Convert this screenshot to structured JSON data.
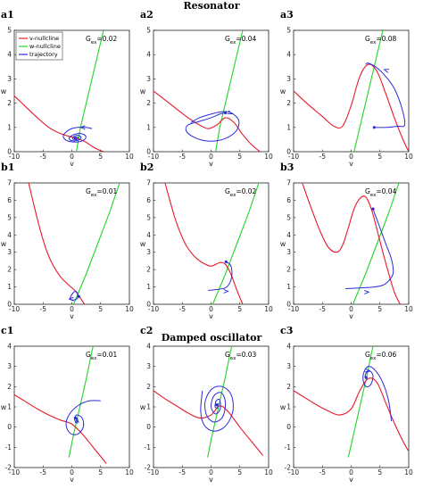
{
  "row_titles": [
    "Resonator",
    "",
    "Damped oscillator"
  ],
  "legend": {
    "entries": [
      {
        "label": "v-nullcline",
        "color": "#e8192c"
      },
      {
        "label": "w-nullcline",
        "color": "#22d42a"
      },
      {
        "label": "trajectory",
        "color": "#2a2ad8"
      }
    ]
  },
  "colors": {
    "v_nullcline": "#e8192c",
    "w_nullcline": "#22d42a",
    "trajectory": "#2a2ad8"
  },
  "chart_data": [
    {
      "panel": "a1",
      "type": "line",
      "gex_label": "G",
      "gex_sub": "ex",
      "gex_value": "=0.02",
      "xlabel": "v",
      "ylabel": "w",
      "xlim": [
        -10,
        10
      ],
      "ylim": [
        0,
        5
      ],
      "xticks": [
        -10,
        -5,
        0,
        5,
        10
      ],
      "yticks": [
        0,
        1,
        2,
        3,
        4,
        5
      ],
      "v_nullcline": {
        "x": [
          -10,
          -8,
          -6,
          -4,
          -2,
          0,
          2,
          4,
          5.5
        ],
        "y": [
          2.3,
          1.85,
          1.4,
          1.0,
          0.75,
          0.6,
          0.45,
          0.15,
          0
        ]
      },
      "w_nullcline": {
        "x": [
          0.8,
          1.5,
          2.5,
          3.5,
          4.5,
          5.5
        ],
        "y": [
          0,
          1,
          2,
          3,
          4,
          5
        ]
      },
      "trajectory": {
        "x": [
          3.5,
          2.5,
          1,
          -0.5,
          -1.5,
          -0.8,
          1,
          2.2,
          2.4,
          1.5,
          0.3,
          -0.5,
          0.1,
          1.2,
          1.6,
          1,
          0.3,
          0.2,
          0.8,
          1.1,
          0.8,
          0.6
        ],
        "y": [
          0.95,
          1.0,
          1.0,
          0.9,
          0.65,
          0.45,
          0.4,
          0.5,
          0.65,
          0.75,
          0.7,
          0.55,
          0.45,
          0.48,
          0.6,
          0.68,
          0.62,
          0.52,
          0.5,
          0.58,
          0.6,
          0.56
        ]
      },
      "arrows": [
        {
          "x": 2.0,
          "y": 1.0,
          "dx": -1,
          "dy": 0
        }
      ]
    },
    {
      "panel": "a2",
      "type": "line",
      "gex_label": "G",
      "gex_sub": "ex",
      "gex_value": "=0.04",
      "xlabel": "v",
      "ylabel": "w",
      "xlim": [
        -10,
        10
      ],
      "ylim": [
        0,
        5
      ],
      "xticks": [
        -10,
        -5,
        0,
        5,
        10
      ],
      "yticks": [
        0,
        1,
        2,
        3,
        4,
        5
      ],
      "v_nullcline": {
        "x": [
          -10,
          -7,
          -4,
          -2,
          -0.5,
          1,
          2.5,
          4,
          5.5,
          7,
          8.5
        ],
        "y": [
          2.5,
          1.95,
          1.4,
          1.1,
          0.95,
          1.1,
          1.4,
          1.2,
          0.7,
          0.3,
          0
        ]
      },
      "w_nullcline": {
        "x": [
          0.8,
          1.5,
          2.5,
          3.5,
          4.5,
          5.5
        ],
        "y": [
          0,
          1,
          2,
          3,
          4,
          5
        ]
      },
      "trajectory": {
        "x": [
          -3.5,
          -2,
          0,
          2,
          3.5,
          4.8,
          4.5,
          3,
          1,
          -1,
          -3,
          -4.3,
          -4,
          -2,
          0,
          1.5,
          2.5
        ],
        "y": [
          1.2,
          1.4,
          1.55,
          1.65,
          1.6,
          1.3,
          0.9,
          0.6,
          0.45,
          0.45,
          0.6,
          0.85,
          1.1,
          1.25,
          1.4,
          1.55,
          1.6
        ]
      },
      "arrows": [
        {
          "x": 3.2,
          "y": 1.6,
          "dx": 1,
          "dy": -0.4
        }
      ]
    },
    {
      "panel": "a3",
      "type": "line",
      "gex_label": "G",
      "gex_sub": "ex",
      "gex_value": "=0.08",
      "xlabel": "v",
      "ylabel": "w",
      "xlim": [
        -10,
        10
      ],
      "ylim": [
        0,
        5
      ],
      "xticks": [
        -10,
        -5,
        0,
        5,
        10
      ],
      "yticks": [
        0,
        1,
        2,
        3,
        4,
        5
      ],
      "v_nullcline": {
        "x": [
          -10,
          -7.5,
          -5,
          -3,
          -1.5,
          0,
          1.5,
          3,
          4.5,
          6,
          7.5,
          9,
          10
        ],
        "y": [
          2.5,
          1.95,
          1.45,
          1.05,
          1.05,
          1.9,
          3.1,
          3.6,
          3.3,
          2.4,
          1.4,
          0.5,
          0
        ]
      },
      "w_nullcline": {
        "x": [
          0.5,
          1.5,
          2.5,
          3.5,
          4.5,
          5.5
        ],
        "y": [
          0,
          1,
          2,
          3,
          4,
          5
        ]
      },
      "trajectory": {
        "x": [
          2.5,
          3,
          4.5,
          6,
          7.5,
          8.8,
          9.3,
          8,
          6,
          4
        ],
        "y": [
          3.6,
          3.65,
          3.45,
          3.1,
          2.6,
          1.8,
          1.1,
          1.05,
          1.0,
          1.0
        ]
      },
      "arrows": [
        {
          "x": 6.2,
          "y": 3.35,
          "dx": -1,
          "dy": 0.3
        }
      ]
    },
    {
      "panel": "b1",
      "type": "line",
      "gex_label": "G",
      "gex_sub": "ex",
      "gex_value": "=0.01",
      "xlabel": "v",
      "ylabel": "w",
      "xlim": [
        -10,
        10
      ],
      "ylim": [
        0,
        7
      ],
      "xticks": [
        -10,
        -5,
        0,
        5,
        10
      ],
      "yticks": [
        0,
        1,
        2,
        3,
        4,
        5,
        6,
        7
      ],
      "v_nullcline": {
        "x": [
          -7.5,
          -6.5,
          -5.5,
          -4.5,
          -3.5,
          -2,
          -0.5,
          0.5,
          1.2,
          1.8,
          2.2
        ],
        "y": [
          7,
          5.6,
          4.3,
          3.2,
          2.4,
          1.6,
          1.1,
          0.8,
          0.5,
          0.2,
          0
        ]
      },
      "w_nullcline": {
        "x": [
          0.3,
          2.5,
          4.5,
          6.5,
          8.3
        ],
        "y": [
          0,
          1.75,
          3.5,
          5.25,
          7
        ]
      },
      "trajectory": {
        "x": [
          1.0,
          1.0,
          0.7,
          0.2,
          -0.3,
          0.1,
          0.8,
          1.2
        ],
        "y": [
          0.35,
          0.6,
          0.75,
          0.65,
          0.35,
          0.25,
          0.3,
          0.45
        ]
      },
      "arrows": [
        {
          "x": 0.0,
          "y": 0.3,
          "dx": -1,
          "dy": 0
        }
      ]
    },
    {
      "panel": "b2",
      "type": "line",
      "gex_label": "G",
      "gex_sub": "ex",
      "gex_value": "=0.02",
      "xlabel": "v",
      "ylabel": "w",
      "xlim": [
        -10,
        10
      ],
      "ylim": [
        0,
        7
      ],
      "xticks": [
        -10,
        -5,
        0,
        5,
        10
      ],
      "yticks": [
        0,
        1,
        2,
        3,
        4,
        5,
        6,
        7
      ],
      "v_nullcline": {
        "x": [
          -8,
          -7,
          -6,
          -4.5,
          -3,
          -1.5,
          0,
          1.5,
          2.5,
          3.5,
          4.5,
          5.5
        ],
        "y": [
          7,
          5.8,
          4.7,
          3.5,
          2.8,
          2.4,
          2.2,
          2.4,
          2.3,
          1.7,
          0.8,
          0
        ]
      },
      "w_nullcline": {
        "x": [
          0.3,
          2.5,
          4.5,
          6.5,
          8.3
        ],
        "y": [
          0,
          1.75,
          3.5,
          5.25,
          7
        ]
      },
      "trajectory": {
        "x": [
          -0.5,
          1,
          2.5,
          3.2,
          3.6,
          3.6,
          3.3,
          2.6
        ],
        "y": [
          0.8,
          0.85,
          0.95,
          1.2,
          1.6,
          2.0,
          2.3,
          2.45
        ]
      },
      "arrows": [
        {
          "x": 2.5,
          "y": 0.75,
          "dx": 1,
          "dy": 0
        }
      ]
    },
    {
      "panel": "b3",
      "type": "line",
      "gex_label": "G",
      "gex_sub": "ex",
      "gex_value": "=0.04",
      "xlabel": "v",
      "ylabel": "w",
      "xlim": [
        -10,
        10
      ],
      "ylim": [
        0,
        7
      ],
      "xticks": [
        -10,
        -5,
        0,
        5,
        10
      ],
      "yticks": [
        0,
        1,
        2,
        3,
        4,
        5,
        6,
        7
      ],
      "v_nullcline": {
        "x": [
          -8.5,
          -7,
          -5.5,
          -4,
          -2.5,
          -1.5,
          -0.5,
          0.5,
          1.5,
          2.5,
          3.5,
          4.5,
          5.5,
          6.5,
          7.5,
          8.5
        ],
        "y": [
          7,
          5.6,
          4.3,
          3.3,
          3.0,
          3.4,
          4.4,
          5.5,
          6.1,
          6.2,
          5.5,
          4.3,
          3.0,
          1.8,
          0.7,
          0
        ]
      },
      "w_nullcline": {
        "x": [
          0.3,
          2.5,
          4.5,
          6.5,
          8.3
        ],
        "y": [
          0,
          1.75,
          3.5,
          5.25,
          7
        ]
      },
      "trajectory": {
        "x": [
          -1,
          2,
          4,
          5.5,
          6.5,
          7.3,
          7.0,
          6.0,
          4.8,
          3.8
        ],
        "y": [
          0.9,
          0.95,
          1.0,
          1.1,
          1.35,
          1.8,
          2.6,
          3.5,
          4.6,
          5.5
        ]
      },
      "arrows": [
        {
          "x": 2.6,
          "y": 0.7,
          "dx": 1,
          "dy": 0
        }
      ]
    },
    {
      "panel": "c1",
      "type": "line",
      "gex_label": "G",
      "gex_sub": "ex",
      "gex_value": "=0.01",
      "xlabel": "v",
      "ylabel": "w",
      "xlim": [
        -10,
        10
      ],
      "ylim": [
        -2,
        4
      ],
      "xticks": [
        -10,
        -5,
        0,
        5,
        10
      ],
      "yticks": [
        -2,
        -1,
        0,
        1,
        2,
        3,
        4
      ],
      "v_nullcline": {
        "x": [
          -10,
          -8,
          -6,
          -4,
          -2,
          0,
          2,
          4,
          6
        ],
        "y": [
          1.6,
          1.25,
          0.9,
          0.6,
          0.35,
          0.15,
          -0.4,
          -1.1,
          -1.8
        ]
      },
      "w_nullcline": {
        "x": [
          -0.5,
          0.2,
          1.0,
          1.8,
          2.6,
          3.3,
          4.1
        ],
        "y": [
          -1.5,
          -0.5,
          0.5,
          1.5,
          2.5,
          3.5,
          4.5
        ]
      },
      "trajectory": {
        "x": [
          5,
          3,
          1,
          -0.5,
          -1,
          -0.3,
          1,
          2,
          1.8,
          0.8,
          0.5,
          0.9,
          1.0,
          0.6
        ],
        "y": [
          1.3,
          1.3,
          1.05,
          0.6,
          0.1,
          -0.3,
          -0.35,
          0,
          0.45,
          0.6,
          0.35,
          0.2,
          0.4,
          0.45
        ]
      },
      "arrows": [
        {
          "x": 0.9,
          "y": 0.3,
          "dx": 0,
          "dy": 1
        }
      ]
    },
    {
      "panel": "c2",
      "type": "line",
      "gex_label": "G",
      "gex_sub": "ex",
      "gex_value": "=0.03",
      "xlabel": "v",
      "ylabel": "w",
      "xlim": [
        -10,
        10
      ],
      "ylim": [
        -2,
        4
      ],
      "xticks": [
        -10,
        -5,
        0,
        5,
        10
      ],
      "yticks": [
        -2,
        -1,
        0,
        1,
        2,
        3,
        4
      ],
      "v_nullcline": {
        "x": [
          -10,
          -8,
          -6,
          -4,
          -2,
          0,
          1.5,
          3,
          5,
          7,
          9
        ],
        "y": [
          1.8,
          1.4,
          1.05,
          0.7,
          0.45,
          0.6,
          1.05,
          0.75,
          0,
          -0.7,
          -1.4
        ]
      },
      "w_nullcline": {
        "x": [
          -0.6,
          0.1,
          0.9,
          1.7,
          2.5,
          3.2,
          4.0
        ],
        "y": [
          -1.5,
          -0.5,
          0.5,
          1.5,
          2.5,
          3.5,
          4.5
        ]
      },
      "trajectory": {
        "x": [
          -1.5,
          -1.8,
          -1.2,
          0.5,
          2.5,
          3.8,
          3.5,
          2,
          0.2,
          -1,
          -0.8,
          0.5,
          2,
          2.5,
          1.8,
          0.5,
          0,
          0.8,
          1.6,
          1.5,
          0.9,
          0.7,
          1.1,
          1.2,
          1.0
        ],
        "y": [
          1.8,
          0.8,
          0.1,
          -0.2,
          0.05,
          0.8,
          1.6,
          2.0,
          1.9,
          1.3,
          0.6,
          0.25,
          0.5,
          1.2,
          1.7,
          1.55,
          1.0,
          0.65,
          0.9,
          1.35,
          1.3,
          1.0,
          0.95,
          1.15,
          1.1
        ]
      },
      "arrows": []
    },
    {
      "panel": "c3",
      "type": "line",
      "gex_label": "G",
      "gex_sub": "ex",
      "gex_value": "=0.06",
      "xlabel": "v",
      "ylabel": "w",
      "xlim": [
        -10,
        10
      ],
      "ylim": [
        -2,
        4
      ],
      "xticks": [
        -10,
        -5,
        0,
        5,
        10
      ],
      "yticks": [
        -2,
        -1,
        0,
        1,
        2,
        3,
        4
      ],
      "v_nullcline": {
        "x": [
          -10,
          -8,
          -6,
          -4,
          -2,
          0,
          1.5,
          3,
          4.5,
          6,
          7.5,
          9,
          10
        ],
        "y": [
          1.8,
          1.45,
          1.1,
          0.8,
          0.6,
          0.9,
          1.8,
          2.4,
          2.2,
          1.2,
          0.2,
          -0.7,
          -1.2
        ]
      },
      "w_nullcline": {
        "x": [
          -0.5,
          0.3,
          1.1,
          1.9,
          2.7,
          3.4,
          4.2
        ],
        "y": [
          -1.5,
          -0.5,
          0.5,
          1.5,
          2.5,
          3.5,
          4.5
        ]
      },
      "trajectory": {
        "x": [
          7,
          6.5,
          5.5,
          4.2,
          3,
          2.2,
          2.1,
          2.6,
          3.4,
          3.8,
          3.4,
          2.7,
          2.4,
          2.6
        ],
        "y": [
          0.3,
          1.3,
          2.2,
          2.8,
          3.0,
          2.7,
          2.3,
          2.0,
          2.1,
          2.5,
          2.75,
          2.7,
          2.5,
          2.45
        ]
      },
      "arrows": [
        {
          "x": 2.7,
          "y": 2.8,
          "dx": 1,
          "dy": 0
        }
      ]
    }
  ]
}
